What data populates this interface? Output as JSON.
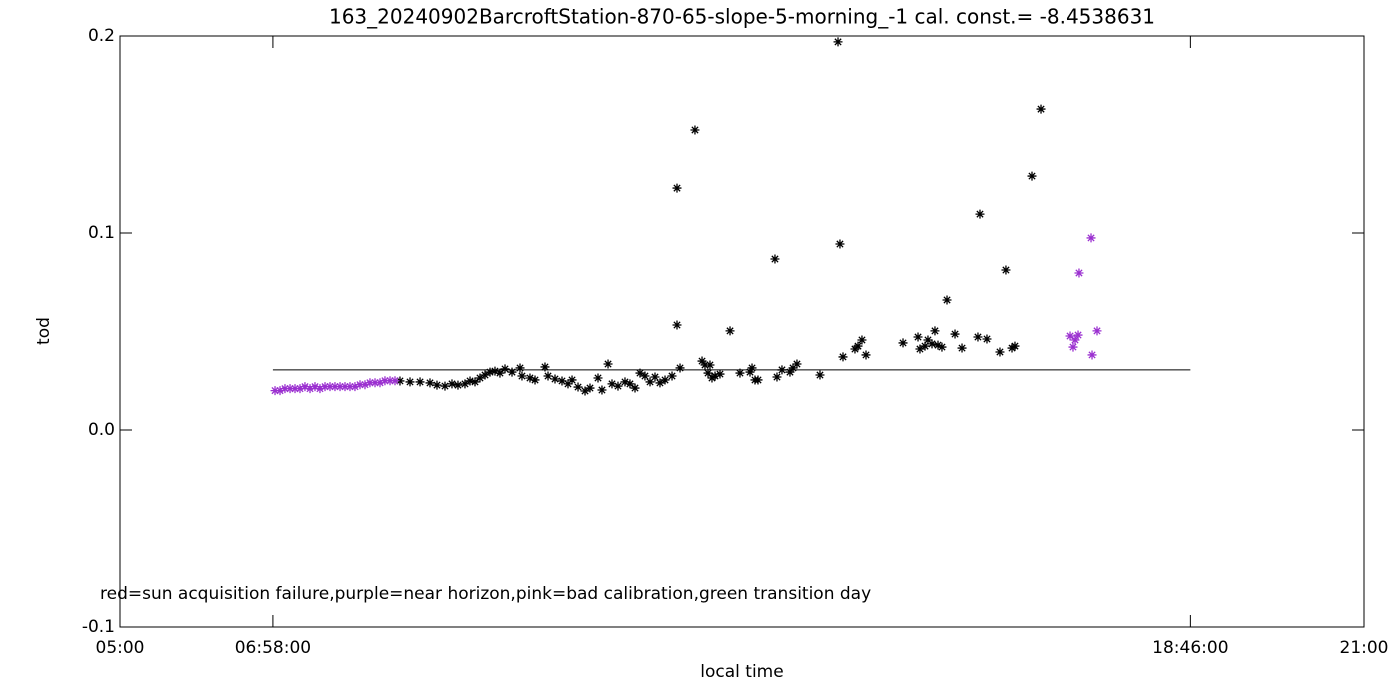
{
  "chart_data": {
    "type": "scatter",
    "title": "163_20240902BarcroftStation-870-65-slope-5-morning_-1 cal. const.= -8.4538631",
    "x_label": "local time",
    "y_label": "tod",
    "annotation": "red=sun acquisition failure,purple=near horizon,pink=bad calibration,green transition day",
    "xlim": [
      5,
      21
    ],
    "xticks": [
      {
        "value": 5,
        "label": "05:00"
      },
      {
        "value": 6.9667,
        "label": "06:58:00"
      },
      {
        "value": 18.7667,
        "label": "18:46:00"
      },
      {
        "value": 21,
        "label": "21:00"
      }
    ],
    "ylim": [
      -0.1,
      0.2
    ],
    "yticks": [
      -0.1,
      {
        "value": 0,
        "label": "0.0"
      },
      0.1,
      0.2
    ],
    "reference_line": {
      "y": 0.0305,
      "x": [
        6.9667,
        18.7667
      ],
      "color": "#000000"
    },
    "series": [
      {
        "color": "#000000",
        "x": [
          8.601,
          8.73,
          8.859,
          8.987,
          9.077,
          9.18,
          9.27,
          9.347,
          9.437,
          9.502,
          9.566,
          9.63,
          9.695,
          9.759,
          9.823,
          9.887,
          9.952,
          10.042,
          10.145,
          10.17,
          10.273,
          10.338,
          10.466,
          10.505,
          10.595,
          10.685,
          10.762,
          10.814,
          10.891,
          10.981,
          11.045,
          11.148,
          11.199,
          11.277,
          11.328,
          11.405,
          11.495,
          11.559,
          11.624,
          11.688,
          11.752,
          11.817,
          11.881,
          11.945,
          12.01,
          12.1,
          12.164,
          12.164,
          12.203,
          12.395,
          12.486,
          12.524,
          12.563,
          12.588,
          12.614,
          12.653,
          12.717,
          12.846,
          12.974,
          13.103,
          13.129,
          13.167,
          13.206,
          13.424,
          13.45,
          13.514,
          13.617,
          13.656,
          13.707,
          14.003,
          14.235,
          14.26,
          14.299,
          14.453,
          14.492,
          14.543,
          14.595,
          15.071,
          15.264,
          15.289,
          15.354,
          15.392,
          15.444,
          15.482,
          15.521,
          15.572,
          15.637,
          15.74,
          15.83,
          16.035,
          16.061,
          16.151,
          16.318,
          16.395,
          16.473,
          16.511,
          16.73,
          16.846
        ],
        "values": [
          0.0249,
          0.0244,
          0.0244,
          0.0239,
          0.0228,
          0.0223,
          0.0234,
          0.0228,
          0.0234,
          0.0249,
          0.0244,
          0.0264,
          0.0279,
          0.0294,
          0.0299,
          0.0289,
          0.031,
          0.0294,
          0.0315,
          0.0274,
          0.0264,
          0.0254,
          0.032,
          0.0274,
          0.0259,
          0.0249,
          0.0234,
          0.0254,
          0.0218,
          0.0198,
          0.0213,
          0.0264,
          0.0203,
          0.0335,
          0.0234,
          0.0223,
          0.0244,
          0.0234,
          0.0213,
          0.0289,
          0.0274,
          0.0244,
          0.0269,
          0.0239,
          0.0254,
          0.0274,
          0.1228,
          0.0533,
          0.0315,
          0.1523,
          0.035,
          0.033,
          0.0289,
          0.033,
          0.0264,
          0.0274,
          0.0284,
          0.0503,
          0.0289,
          0.0294,
          0.0315,
          0.0254,
          0.0254,
          0.0868,
          0.0269,
          0.0305,
          0.0294,
          0.0315,
          0.0335,
          0.0279,
          0.197,
          0.0944,
          0.0371,
          0.0411,
          0.0426,
          0.0457,
          0.0381,
          0.0442,
          0.0472,
          0.0411,
          0.0426,
          0.0457,
          0.0437,
          0.0503,
          0.0431,
          0.0421,
          0.066,
          0.0487,
          0.0416,
          0.0472,
          0.1096,
          0.0462,
          0.0396,
          0.0812,
          0.0416,
          0.0426,
          0.1289,
          0.1629
        ]
      },
      {
        "color": "#9b30d0",
        "x": [
          6.994,
          7.058,
          7.122,
          7.187,
          7.251,
          7.315,
          7.379,
          7.444,
          7.508,
          7.572,
          7.637,
          7.701,
          7.765,
          7.83,
          7.894,
          7.958,
          8.022,
          8.087,
          8.151,
          8.215,
          8.28,
          8.344,
          8.408,
          8.473,
          8.537,
          17.219,
          17.257,
          17.283,
          17.322,
          17.334,
          17.489,
          17.502,
          17.566
        ],
        "values": [
          0.02,
          0.02,
          0.021,
          0.021,
          0.021,
          0.021,
          0.022,
          0.021,
          0.022,
          0.021,
          0.022,
          0.022,
          0.022,
          0.022,
          0.022,
          0.022,
          0.022,
          0.023,
          0.023,
          0.024,
          0.024,
          0.024,
          0.025,
          0.025,
          0.025,
          0.0477,
          0.0421,
          0.0457,
          0.0482,
          0.0797,
          0.0975,
          0.0381,
          0.0503
        ]
      }
    ]
  }
}
